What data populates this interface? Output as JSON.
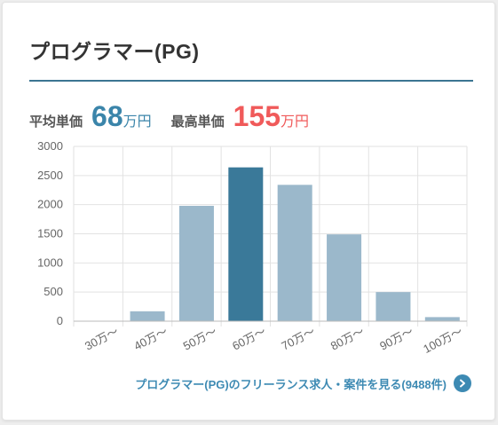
{
  "header": {
    "title": "プログラマー(PG)"
  },
  "prices": {
    "avg_label": "平均単価",
    "avg_value": "68",
    "avg_unit": "万円",
    "max_label": "最高単価",
    "max_value": "155",
    "max_unit": "万円"
  },
  "colors": {
    "bar": "#9bb8cb",
    "bar_highlight": "#3a7999",
    "accent_avg": "#3b85aa",
    "accent_max": "#f05a5a",
    "link": "#3d8ab3"
  },
  "chart_data": {
    "type": "bar",
    "categories": [
      "30万～",
      "40万～",
      "50万～",
      "60万～",
      "70万～",
      "80万～",
      "90万～",
      "100万～"
    ],
    "values": [
      5,
      170,
      1980,
      2640,
      2340,
      1490,
      500,
      70
    ],
    "highlight_index": 3,
    "ylim": [
      0,
      3000
    ],
    "yticks": [
      0,
      500,
      1000,
      1500,
      2000,
      2500,
      3000
    ],
    "grid": true,
    "title": "",
    "xlabel": "",
    "ylabel": ""
  },
  "footer": {
    "link_text": "プログラマー(PG)のフリーランス求人・案件を見る(9488件)",
    "link_icon": "chevron-right-icon"
  }
}
